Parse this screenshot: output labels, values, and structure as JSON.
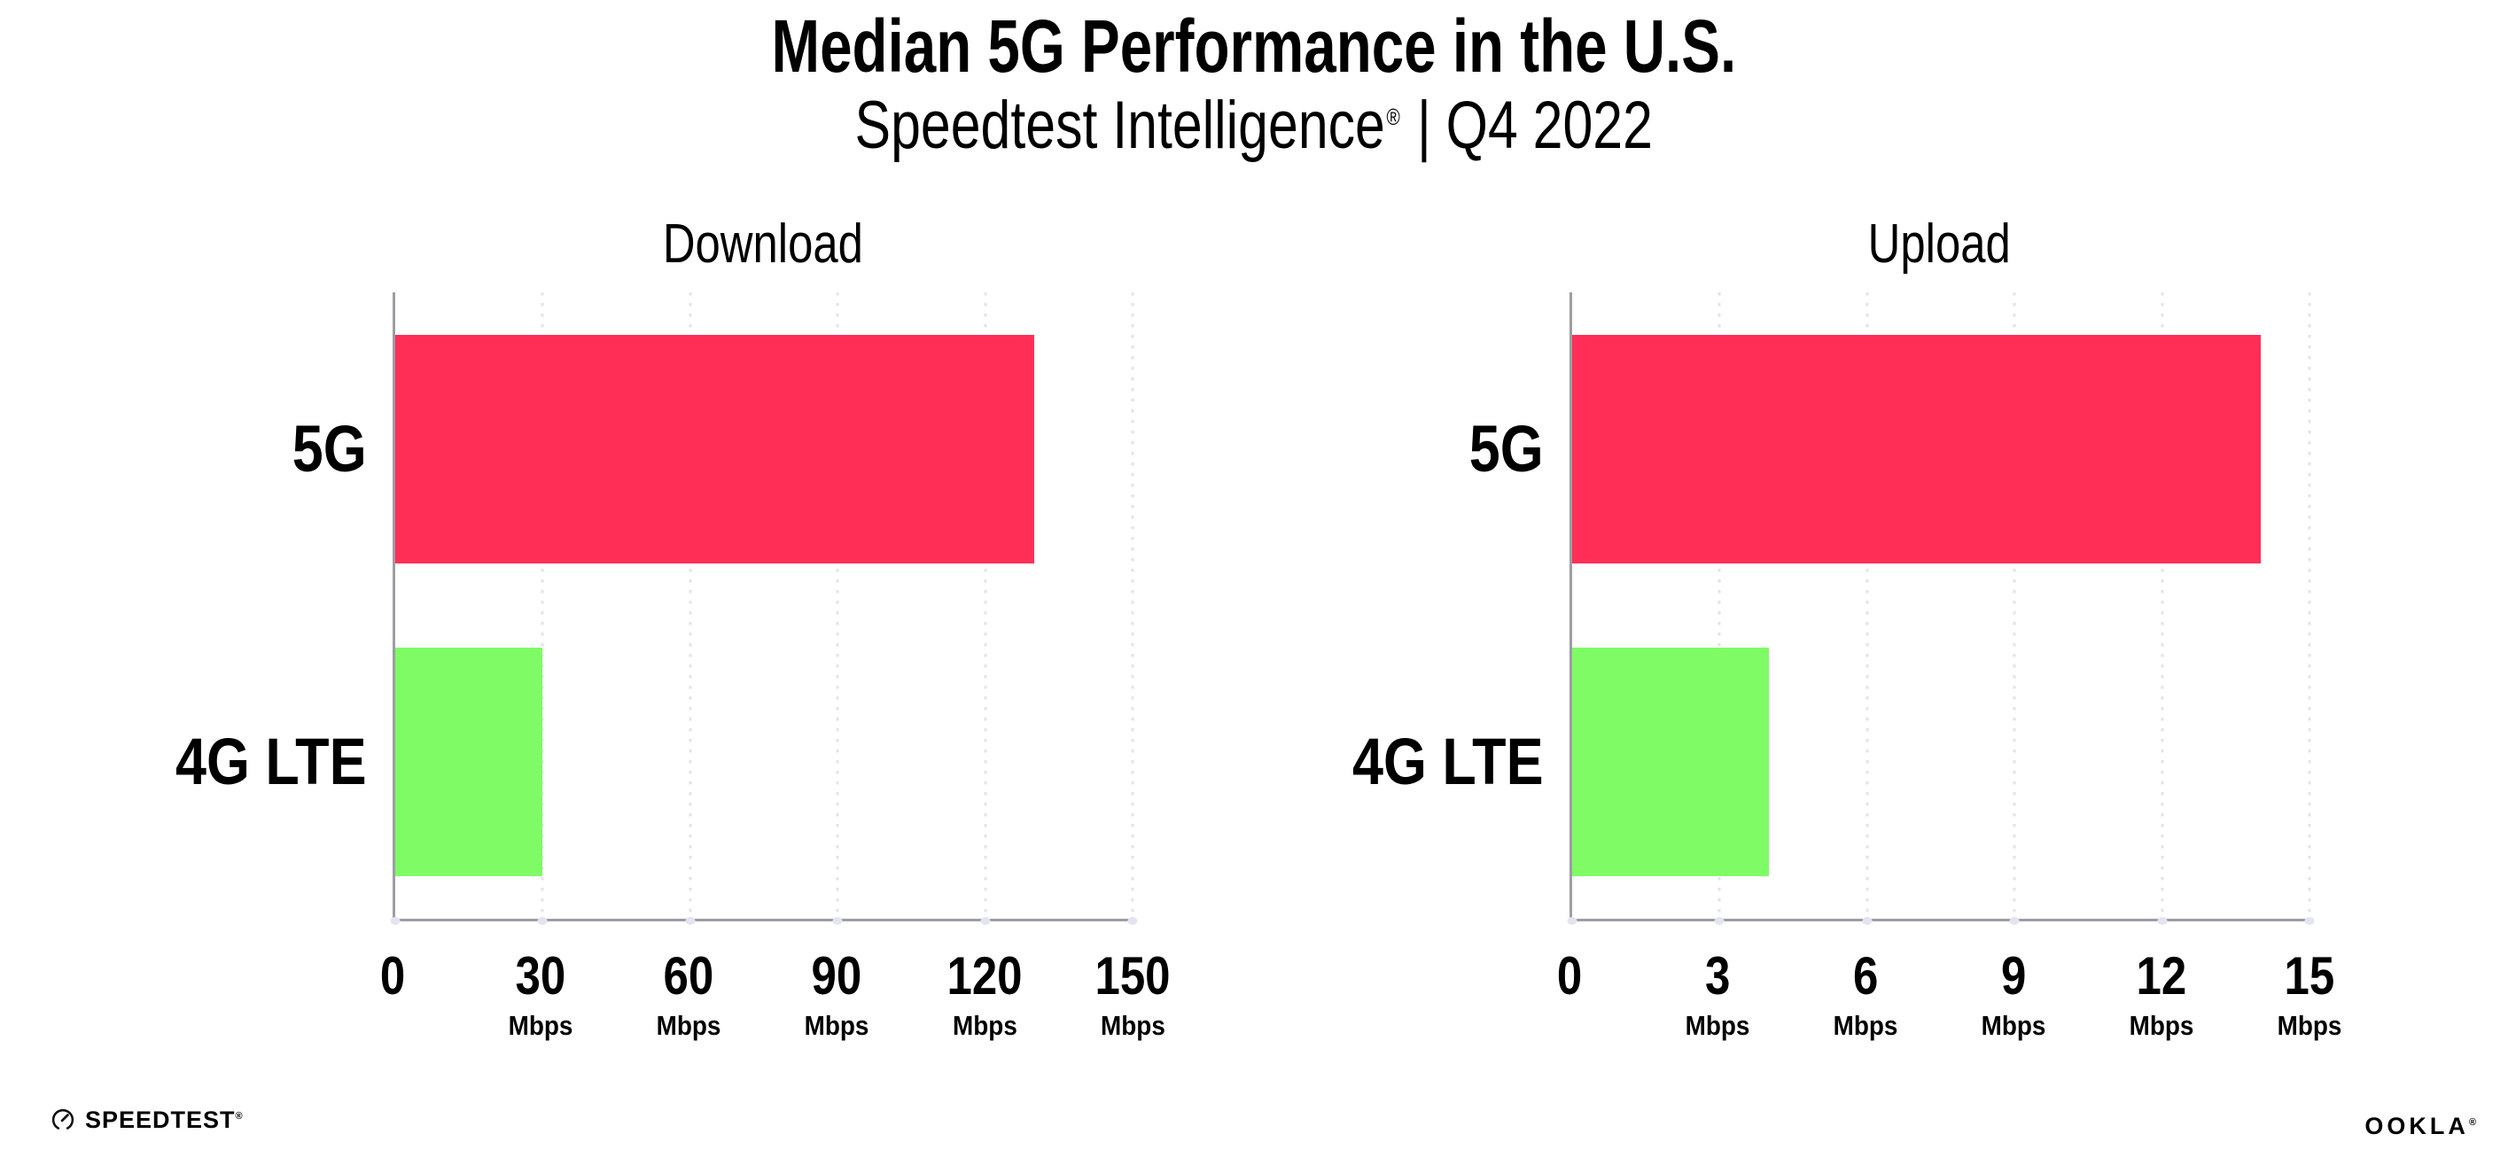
{
  "title": "Median 5G Performance in the U.S.",
  "subtitle": {
    "text": "Speedtest Intelligence",
    "mark": "®",
    "period": "| Q4 2022"
  },
  "footer": {
    "speedtest_label": "SPEEDTEST",
    "speedtest_mark": "®",
    "speedtest_icon": "gauge-icon",
    "ookla_label": "OOKLA",
    "ookla_mark": "®"
  },
  "colors": {
    "bar_5g": "#FF2E57",
    "bar_4g_lte": "#7FFB66",
    "axis": "#9d9da2",
    "gridline": "#e2e3ee",
    "text": "#000000",
    "background": "#ffffff"
  },
  "chart_data": [
    {
      "type": "bar",
      "orientation": "horizontal",
      "title": "Download",
      "categories": [
        "5G",
        "4G LTE"
      ],
      "values": [
        130,
        30
      ],
      "unit": "Mbps",
      "xlim": [
        0,
        150
      ],
      "xticks": [
        0,
        30,
        60,
        90,
        120,
        150
      ],
      "tick_unit_label": "Mbps",
      "bar_colors": [
        "#FF2E57",
        "#7FFB66"
      ],
      "grid": "dotted-vertical-gridlines",
      "legend": "none"
    },
    {
      "type": "bar",
      "orientation": "horizontal",
      "title": "Upload",
      "categories": [
        "5G",
        "4G LTE"
      ],
      "values": [
        14,
        4
      ],
      "unit": "Mbps",
      "xlim": [
        0,
        15
      ],
      "xticks": [
        0,
        3,
        6,
        9,
        12,
        15
      ],
      "tick_unit_label": "Mbps",
      "bar_colors": [
        "#FF2E57",
        "#7FFB66"
      ],
      "grid": "dotted-vertical-gridlines",
      "legend": "none"
    }
  ]
}
